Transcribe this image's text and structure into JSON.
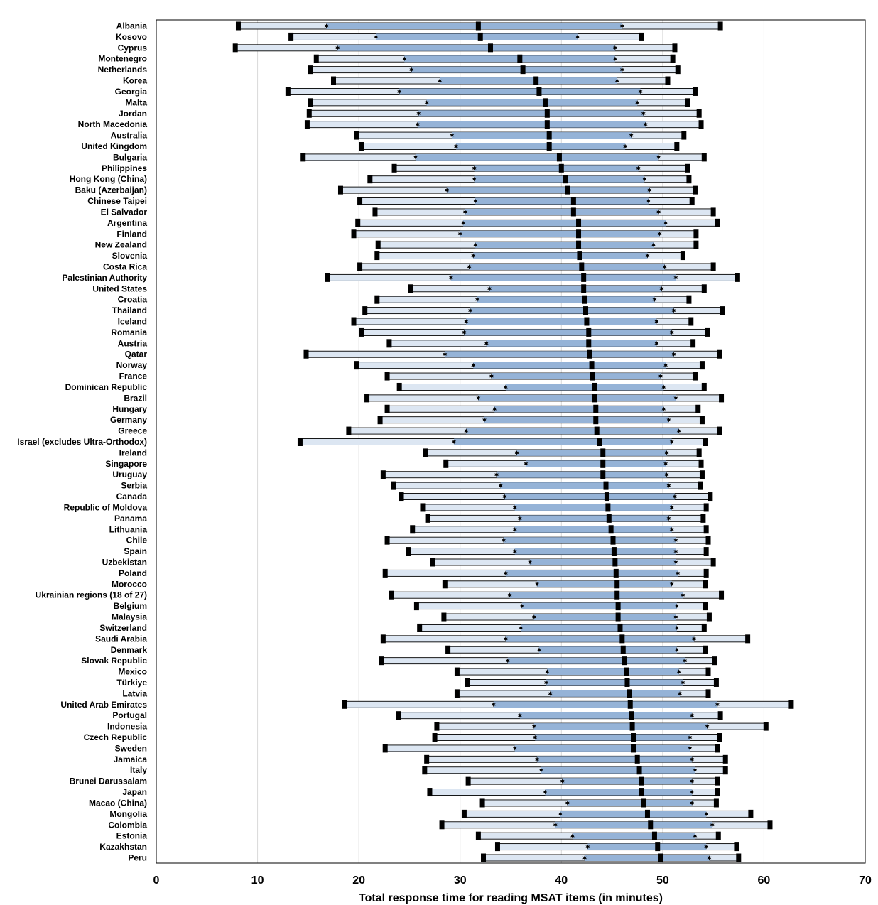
{
  "chart_data": {
    "type": "bar",
    "subtype": "range-percentile",
    "xlabel": "Total response time for reading MSAT items (in minutes)",
    "xlim": [
      0,
      70
    ],
    "xticks": [
      0,
      10,
      20,
      30,
      40,
      50,
      60,
      70
    ],
    "grid": "vertical",
    "colors": {
      "outer_band": "#dce6f2",
      "inner_band": "#95b3d7",
      "band_border": "#000000",
      "markers": "#000000",
      "grid": "#d9d9d9"
    },
    "series_stats": [
      "p5",
      "p25",
      "median",
      "p75",
      "p95"
    ],
    "rows": [
      {
        "label": "Albania",
        "p5": 8.1,
        "p25": 16.8,
        "median": 31.8,
        "p75": 46.0,
        "p95": 55.7
      },
      {
        "label": "Kosovo",
        "p5": 13.3,
        "p25": 21.7,
        "median": 32.0,
        "p75": 41.6,
        "p95": 47.9
      },
      {
        "label": "Cyprus",
        "p5": 7.8,
        "p25": 17.9,
        "median": 33.0,
        "p75": 45.3,
        "p95": 51.2
      },
      {
        "label": "Montenegro",
        "p5": 15.8,
        "p25": 24.5,
        "median": 35.9,
        "p75": 45.3,
        "p95": 51.0
      },
      {
        "label": "Netherlands",
        "p5": 15.2,
        "p25": 25.2,
        "median": 36.2,
        "p75": 46.0,
        "p95": 51.5
      },
      {
        "label": "Korea",
        "p5": 17.5,
        "p25": 28.0,
        "median": 37.5,
        "p75": 45.5,
        "p95": 50.5
      },
      {
        "label": "Georgia",
        "p5": 13.0,
        "p25": 24.0,
        "median": 37.8,
        "p75": 47.8,
        "p95": 53.2
      },
      {
        "label": "Malta",
        "p5": 15.2,
        "p25": 26.7,
        "median": 38.4,
        "p75": 47.5,
        "p95": 52.5
      },
      {
        "label": "Jordan",
        "p5": 15.1,
        "p25": 25.9,
        "median": 38.6,
        "p75": 48.1,
        "p95": 53.6
      },
      {
        "label": "North Macedonia",
        "p5": 14.9,
        "p25": 25.8,
        "median": 38.6,
        "p75": 48.3,
        "p95": 53.8
      },
      {
        "label": "Australia",
        "p5": 19.8,
        "p25": 29.2,
        "median": 38.8,
        "p75": 46.9,
        "p95": 52.1
      },
      {
        "label": "United Kingdom",
        "p5": 20.3,
        "p25": 29.6,
        "median": 38.8,
        "p75": 46.3,
        "p95": 51.4
      },
      {
        "label": "Bulgaria",
        "p5": 14.5,
        "p25": 25.6,
        "median": 39.8,
        "p75": 49.6,
        "p95": 54.1
      },
      {
        "label": "Philippines",
        "p5": 23.5,
        "p25": 31.4,
        "median": 40.0,
        "p75": 47.6,
        "p95": 52.5
      },
      {
        "label": "Hong Kong (China)",
        "p5": 21.1,
        "p25": 31.4,
        "median": 40.4,
        "p75": 48.2,
        "p95": 52.6
      },
      {
        "label": "Baku (Azerbaijan)",
        "p5": 18.2,
        "p25": 28.7,
        "median": 40.6,
        "p75": 48.7,
        "p95": 53.2
      },
      {
        "label": "Chinese Taipei",
        "p5": 20.1,
        "p25": 31.5,
        "median": 41.2,
        "p75": 48.6,
        "p95": 52.9
      },
      {
        "label": "El Salvador",
        "p5": 21.6,
        "p25": 30.5,
        "median": 41.2,
        "p75": 49.6,
        "p95": 55.0
      },
      {
        "label": "Argentina",
        "p5": 19.9,
        "p25": 30.3,
        "median": 41.7,
        "p75": 50.3,
        "p95": 55.4
      },
      {
        "label": "Finland",
        "p5": 19.5,
        "p25": 30.0,
        "median": 41.7,
        "p75": 49.7,
        "p95": 53.3
      },
      {
        "label": "New Zealand",
        "p5": 21.9,
        "p25": 31.5,
        "median": 41.7,
        "p75": 49.1,
        "p95": 53.3
      },
      {
        "label": "Slovenia",
        "p5": 21.8,
        "p25": 31.3,
        "median": 41.8,
        "p75": 48.5,
        "p95": 52.0
      },
      {
        "label": "Costa Rica",
        "p5": 20.1,
        "p25": 30.9,
        "median": 42.0,
        "p75": 50.2,
        "p95": 55.0
      },
      {
        "label": "Palestinian Authority",
        "p5": 16.9,
        "p25": 29.1,
        "median": 42.2,
        "p75": 51.3,
        "p95": 57.4
      },
      {
        "label": "United States",
        "p5": 25.1,
        "p25": 32.9,
        "median": 42.2,
        "p75": 49.9,
        "p95": 54.1
      },
      {
        "label": "Croatia",
        "p5": 21.8,
        "p25": 31.7,
        "median": 42.3,
        "p75": 49.2,
        "p95": 52.6
      },
      {
        "label": "Thailand",
        "p5": 20.6,
        "p25": 31.0,
        "median": 42.4,
        "p75": 51.1,
        "p95": 55.9
      },
      {
        "label": "Iceland",
        "p5": 19.5,
        "p25": 30.6,
        "median": 42.5,
        "p75": 49.4,
        "p95": 52.8
      },
      {
        "label": "Romania",
        "p5": 20.3,
        "p25": 30.4,
        "median": 42.7,
        "p75": 50.9,
        "p95": 54.4
      },
      {
        "label": "Austria",
        "p5": 23.0,
        "p25": 32.6,
        "median": 42.7,
        "p75": 49.4,
        "p95": 53.0
      },
      {
        "label": "Qatar",
        "p5": 14.8,
        "p25": 28.5,
        "median": 42.8,
        "p75": 51.1,
        "p95": 55.6
      },
      {
        "label": "Norway",
        "p5": 19.8,
        "p25": 31.3,
        "median": 43.0,
        "p75": 50.3,
        "p95": 53.9
      },
      {
        "label": "France",
        "p5": 22.8,
        "p25": 33.1,
        "median": 43.1,
        "p75": 49.8,
        "p95": 53.2
      },
      {
        "label": "Dominican Republic",
        "p5": 24.0,
        "p25": 34.5,
        "median": 43.3,
        "p75": 50.1,
        "p95": 54.1
      },
      {
        "label": "Brazil",
        "p5": 20.8,
        "p25": 31.8,
        "median": 43.3,
        "p75": 51.3,
        "p95": 55.8
      },
      {
        "label": "Hungary",
        "p5": 22.8,
        "p25": 33.4,
        "median": 43.4,
        "p75": 50.1,
        "p95": 53.5
      },
      {
        "label": "Germany",
        "p5": 22.1,
        "p25": 32.4,
        "median": 43.4,
        "p75": 50.6,
        "p95": 53.9
      },
      {
        "label": "Greece",
        "p5": 19.0,
        "p25": 30.6,
        "median": 43.5,
        "p75": 51.6,
        "p95": 55.6
      },
      {
        "label": "Israel (excludes Ultra-Orthodox)",
        "p5": 14.2,
        "p25": 29.4,
        "median": 43.8,
        "p75": 50.9,
        "p95": 54.2
      },
      {
        "label": "Ireland",
        "p5": 26.6,
        "p25": 35.6,
        "median": 44.1,
        "p75": 50.4,
        "p95": 53.6
      },
      {
        "label": "Singapore",
        "p5": 28.6,
        "p25": 36.5,
        "median": 44.1,
        "p75": 50.3,
        "p95": 53.8
      },
      {
        "label": "Uruguay",
        "p5": 22.4,
        "p25": 33.6,
        "median": 44.1,
        "p75": 50.4,
        "p95": 53.9
      },
      {
        "label": "Serbia",
        "p5": 23.4,
        "p25": 34.0,
        "median": 44.4,
        "p75": 50.6,
        "p95": 53.7
      },
      {
        "label": "Canada",
        "p5": 24.2,
        "p25": 34.4,
        "median": 44.5,
        "p75": 51.2,
        "p95": 54.7
      },
      {
        "label": "Republic of Moldova",
        "p5": 26.3,
        "p25": 35.4,
        "median": 44.6,
        "p75": 50.9,
        "p95": 54.3
      },
      {
        "label": "Panama",
        "p5": 26.8,
        "p25": 35.9,
        "median": 44.7,
        "p75": 50.6,
        "p95": 54.0
      },
      {
        "label": "Lithuania",
        "p5": 25.3,
        "p25": 35.4,
        "median": 44.9,
        "p75": 50.9,
        "p95": 54.3
      },
      {
        "label": "Chile",
        "p5": 22.8,
        "p25": 34.3,
        "median": 45.1,
        "p75": 51.3,
        "p95": 54.5
      },
      {
        "label": "Spain",
        "p5": 24.9,
        "p25": 35.4,
        "median": 45.2,
        "p75": 51.3,
        "p95": 54.3
      },
      {
        "label": "Uzbekistan",
        "p5": 27.3,
        "p25": 36.9,
        "median": 45.3,
        "p75": 51.3,
        "p95": 55.0
      },
      {
        "label": "Poland",
        "p5": 22.6,
        "p25": 34.5,
        "median": 45.4,
        "p75": 51.5,
        "p95": 54.3
      },
      {
        "label": "Morocco",
        "p5": 28.5,
        "p25": 37.6,
        "median": 45.5,
        "p75": 50.9,
        "p95": 54.2
      },
      {
        "label": "Ukrainian regions (18 of 27)",
        "p5": 23.2,
        "p25": 34.9,
        "median": 45.5,
        "p75": 52.0,
        "p95": 55.8
      },
      {
        "label": "Belgium",
        "p5": 25.7,
        "p25": 36.1,
        "median": 45.6,
        "p75": 51.4,
        "p95": 54.2
      },
      {
        "label": "Malaysia",
        "p5": 28.4,
        "p25": 37.3,
        "median": 45.6,
        "p75": 51.3,
        "p95": 54.6
      },
      {
        "label": "Switzerland",
        "p5": 26.0,
        "p25": 36.0,
        "median": 45.8,
        "p75": 51.4,
        "p95": 54.1
      },
      {
        "label": "Saudi Arabia",
        "p5": 22.4,
        "p25": 34.5,
        "median": 46.0,
        "p75": 53.1,
        "p95": 58.4
      },
      {
        "label": "Denmark",
        "p5": 28.8,
        "p25": 37.8,
        "median": 46.1,
        "p75": 51.4,
        "p95": 54.2
      },
      {
        "label": "Slovak Republic",
        "p5": 22.2,
        "p25": 34.7,
        "median": 46.2,
        "p75": 52.2,
        "p95": 55.1
      },
      {
        "label": "Mexico",
        "p5": 29.7,
        "p25": 38.6,
        "median": 46.4,
        "p75": 51.6,
        "p95": 54.5
      },
      {
        "label": "Türkiye",
        "p5": 30.7,
        "p25": 38.5,
        "median": 46.5,
        "p75": 52.0,
        "p95": 55.3
      },
      {
        "label": "Latvia",
        "p5": 29.7,
        "p25": 38.9,
        "median": 46.7,
        "p75": 51.7,
        "p95": 54.5
      },
      {
        "label": "United Arab Emirates",
        "p5": 18.6,
        "p25": 33.3,
        "median": 46.8,
        "p75": 55.4,
        "p95": 62.7
      },
      {
        "label": "Portugal",
        "p5": 23.9,
        "p25": 35.9,
        "median": 46.9,
        "p75": 52.9,
        "p95": 55.7
      },
      {
        "label": "Indonesia",
        "p5": 27.7,
        "p25": 37.3,
        "median": 47.0,
        "p75": 54.4,
        "p95": 60.2
      },
      {
        "label": "Czech Republic",
        "p5": 27.5,
        "p25": 37.4,
        "median": 47.1,
        "p75": 52.7,
        "p95": 55.6
      },
      {
        "label": "Sweden",
        "p5": 22.6,
        "p25": 35.4,
        "median": 47.1,
        "p75": 52.7,
        "p95": 55.4
      },
      {
        "label": "Jamaica",
        "p5": 26.7,
        "p25": 37.6,
        "median": 47.5,
        "p75": 52.9,
        "p95": 56.2
      },
      {
        "label": "Italy",
        "p5": 26.5,
        "p25": 38.0,
        "median": 47.7,
        "p75": 53.2,
        "p95": 56.2
      },
      {
        "label": "Brunei Darussalam",
        "p5": 30.8,
        "p25": 40.1,
        "median": 47.9,
        "p75": 52.9,
        "p95": 55.4
      },
      {
        "label": "Japan",
        "p5": 27.0,
        "p25": 38.4,
        "median": 47.9,
        "p75": 52.9,
        "p95": 55.4
      },
      {
        "label": "Macao (China)",
        "p5": 32.2,
        "p25": 40.6,
        "median": 48.1,
        "p75": 52.9,
        "p95": 55.3
      },
      {
        "label": "Mongolia",
        "p5": 30.4,
        "p25": 39.9,
        "median": 48.5,
        "p75": 54.3,
        "p95": 58.7
      },
      {
        "label": "Colombia",
        "p5": 28.2,
        "p25": 39.4,
        "median": 48.8,
        "p75": 54.9,
        "p95": 60.6
      },
      {
        "label": "Estonia",
        "p5": 31.8,
        "p25": 41.1,
        "median": 49.2,
        "p75": 53.2,
        "p95": 55.5
      },
      {
        "label": "Kazakhstan",
        "p5": 33.7,
        "p25": 42.6,
        "median": 49.5,
        "p75": 54.3,
        "p95": 57.3
      },
      {
        "label": "Peru",
        "p5": 32.3,
        "p25": 42.3,
        "median": 49.8,
        "p75": 54.6,
        "p95": 57.5
      }
    ]
  }
}
